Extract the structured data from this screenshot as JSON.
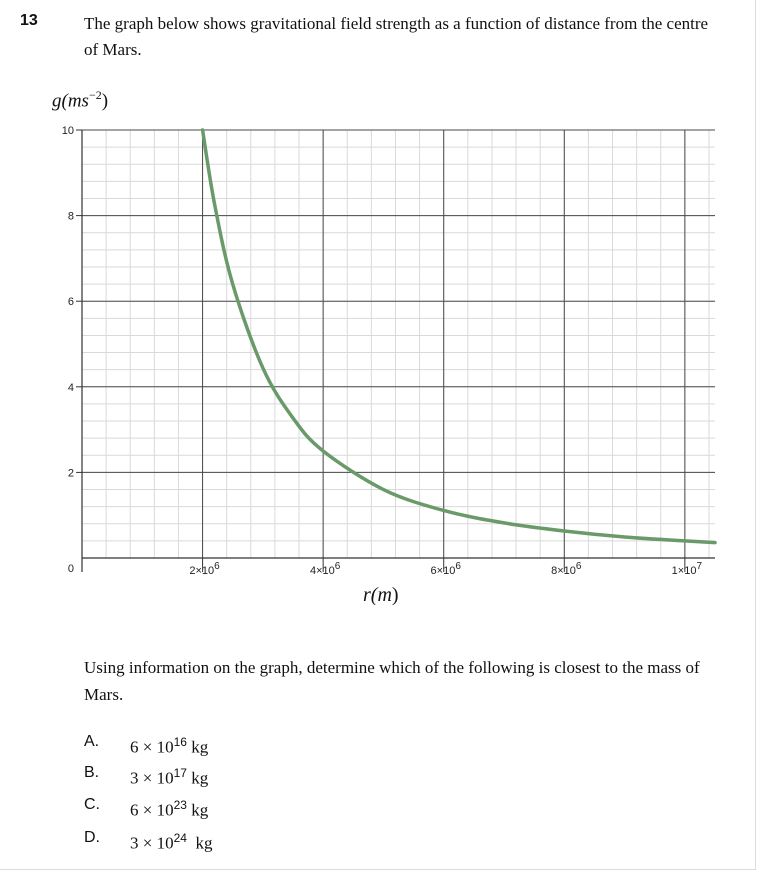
{
  "question": {
    "number": "13",
    "intro": "The graph below shows gravitational field strength as a function of distance from the centre of Mars.",
    "prompt": "Using information on the graph, determine which of the following is closest to the mass of Mars.",
    "options": [
      {
        "letter": "A.",
        "mantissa": "6 × 10",
        "exp": "16",
        "unit": " kg"
      },
      {
        "letter": "B.",
        "mantissa": "3 × 10",
        "exp": "17",
        "unit": " kg"
      },
      {
        "letter": "C.",
        "mantissa": "6 × 10",
        "exp": "23",
        "unit": " kg"
      },
      {
        "letter": "D.",
        "mantissa": "3 × 10",
        "exp": "24",
        "unit": "  kg"
      }
    ]
  },
  "chart_data": {
    "type": "line",
    "ylabel": {
      "base": "g(ms",
      "exp": "−2",
      "close": ")"
    },
    "xlabel": {
      "base": "r(m",
      "close": ")"
    },
    "xlim": [
      0,
      10500000
    ],
    "ylim": [
      0,
      10
    ],
    "x_ticks": [
      {
        "value": 2000000,
        "label": "2×10",
        "exp": "6"
      },
      {
        "value": 4000000,
        "label": "4×10",
        "exp": "6"
      },
      {
        "value": 6000000,
        "label": "6×10",
        "exp": "6"
      },
      {
        "value": 8000000,
        "label": "8×10",
        "exp": "6"
      },
      {
        "value": 10000000,
        "label": "1×10",
        "exp": "7"
      }
    ],
    "y_ticks": [
      {
        "value": 0,
        "label": "0"
      },
      {
        "value": 2,
        "label": "2"
      },
      {
        "value": 4,
        "label": "4"
      },
      {
        "value": 6,
        "label": "6"
      },
      {
        "value": 8,
        "label": "8"
      },
      {
        "value": 10,
        "label": "10"
      }
    ],
    "grid": true,
    "series": [
      {
        "color": "#6a9a6a",
        "x": [
          2000000,
          2200000,
          2500000,
          3000000,
          3500000,
          4000000,
          5000000,
          6000000,
          7000000,
          8000000,
          9000000,
          10000000,
          10500000
        ],
        "y": [
          10,
          8.26,
          6.4,
          4.44,
          3.27,
          2.5,
          1.6,
          1.11,
          0.82,
          0.63,
          0.49,
          0.4,
          0.36
        ]
      }
    ]
  }
}
